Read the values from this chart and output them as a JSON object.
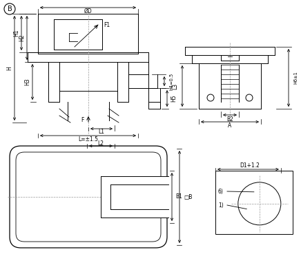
{
  "bg_color": "#ffffff",
  "line_color": "#000000",
  "font_size_label": 6.5,
  "font_size_small": 5.5,
  "annotations": {
    "B_circle": "B",
    "OD": "ØD",
    "F1": "F1",
    "H1": "H1",
    "H2": "H2",
    "H3": "H3",
    "H": "H",
    "H4": "H4=0.5",
    "H5": "H5",
    "F": "F",
    "L1": "L1",
    "L": "L=±1.5",
    "L2": "L2",
    "B1": "B1",
    "B_sq": "□B",
    "L3": "L3",
    "B2": "B2",
    "A": "A",
    "H6": "H6±1",
    "D1": "D1+1.2",
    "label_6": "6)",
    "label_1": "1)"
  }
}
